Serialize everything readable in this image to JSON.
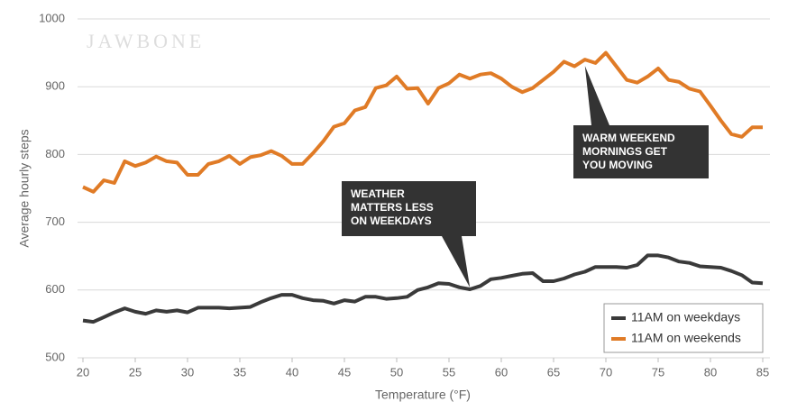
{
  "chart_data": {
    "type": "line",
    "watermark": "JAWBONE",
    "x_label": "Temperature (°F)",
    "y_label": "Average hourly steps",
    "x": [
      20,
      21,
      22,
      23,
      24,
      25,
      26,
      27,
      28,
      29,
      30,
      31,
      32,
      33,
      34,
      35,
      36,
      37,
      38,
      39,
      40,
      41,
      42,
      43,
      44,
      45,
      46,
      47,
      48,
      49,
      50,
      51,
      52,
      53,
      54,
      55,
      56,
      57,
      58,
      59,
      60,
      61,
      62,
      63,
      64,
      65,
      66,
      67,
      68,
      69,
      70,
      71,
      72,
      73,
      74,
      75,
      76,
      77,
      78,
      79,
      80,
      81,
      82,
      83,
      84,
      85
    ],
    "series": [
      {
        "name": "11AM on weekdays",
        "color": "#3a3a3a",
        "values": [
          555,
          553,
          560,
          567,
          573,
          568,
          565,
          570,
          568,
          570,
          567,
          574,
          574,
          574,
          573,
          574,
          575,
          582,
          588,
          593,
          593,
          588,
          585,
          584,
          580,
          585,
          583,
          590,
          590,
          587,
          588,
          590,
          600,
          604,
          610,
          609,
          604,
          601,
          606,
          616,
          618,
          621,
          624,
          625,
          613,
          613,
          617,
          623,
          627,
          634,
          634,
          634,
          633,
          637,
          651,
          651,
          648,
          642,
          640,
          635,
          634,
          633,
          628,
          622,
          611,
          610
        ]
      },
      {
        "name": "11AM on weekends",
        "color": "#e07b26",
        "values": [
          752,
          745,
          762,
          758,
          790,
          783,
          788,
          797,
          790,
          788,
          770,
          770,
          786,
          790,
          798,
          786,
          796,
          799,
          805,
          798,
          786,
          786,
          802,
          820,
          841,
          846,
          865,
          870,
          898,
          902,
          915,
          897,
          898,
          875,
          898,
          905,
          918,
          912,
          918,
          920,
          912,
          900,
          892,
          898,
          910,
          922,
          937,
          930,
          940,
          935,
          950,
          930,
          910,
          906,
          915,
          927,
          910,
          907,
          897,
          893,
          872,
          850,
          830,
          826,
          840,
          840
        ]
      }
    ],
    "xlim": [
      20,
      85
    ],
    "xticks": [
      20,
      25,
      30,
      35,
      40,
      45,
      50,
      55,
      60,
      65,
      70,
      75,
      80,
      85
    ],
    "ylim": [
      500,
      1000
    ],
    "yticks": [
      500,
      600,
      700,
      800,
      900,
      1000
    ],
    "grid": true,
    "legend": "lower right",
    "annotations": [
      {
        "lines": [
          "WEATHER",
          "MATTERS LESS",
          "ON WEEKDAYS"
        ]
      },
      {
        "lines": [
          "WARM WEEKEND",
          "MORNINGS GET",
          "YOU MOVING"
        ]
      }
    ]
  }
}
